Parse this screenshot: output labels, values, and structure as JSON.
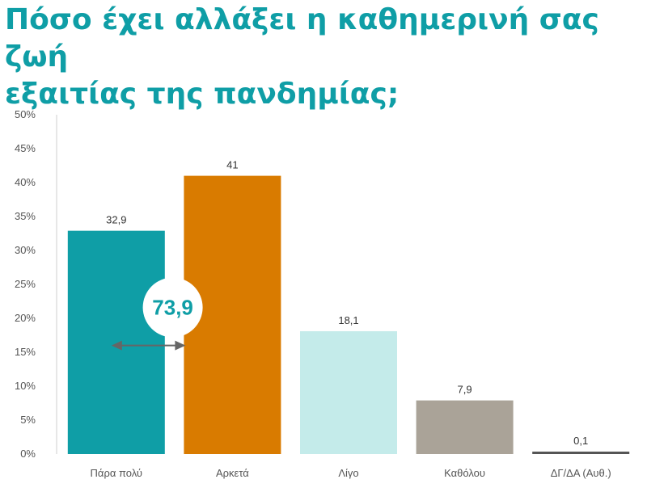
{
  "title_line1": "Πόσο έχει αλλάξει η καθημερινή σας ζωή",
  "title_line2": "εξαιτίας της πανδημίας;",
  "chart_data": {
    "type": "bar",
    "title": "Πόσο έχει αλλάξει η καθημερινή σας ζωή εξαιτίας της πανδημίας;",
    "categories": [
      "Πάρα πολύ",
      "Αρκετά",
      "Λίγο",
      "Καθόλου",
      "ΔΓ/ΔΑ (Αυθ.)"
    ],
    "values": [
      32.9,
      41,
      18.1,
      7.9,
      0.1
    ],
    "value_labels": [
      "32,9",
      "41",
      "18,1",
      "7,9",
      "0,1"
    ],
    "colors": [
      "#0f9ea6",
      "#d97b00",
      "#c4ebea",
      "#aaa398",
      "#555555"
    ],
    "ylim": [
      0,
      50
    ],
    "yticks": [
      "0%",
      "5%",
      "10%",
      "15%",
      "20%",
      "25%",
      "30%",
      "35%",
      "40%",
      "45%",
      "50%"
    ],
    "grid": false,
    "annotation": {
      "text": "73,9",
      "spans": [
        "Πάρα πολύ",
        "Αρκετά"
      ],
      "color": "#0f9ea6"
    }
  }
}
